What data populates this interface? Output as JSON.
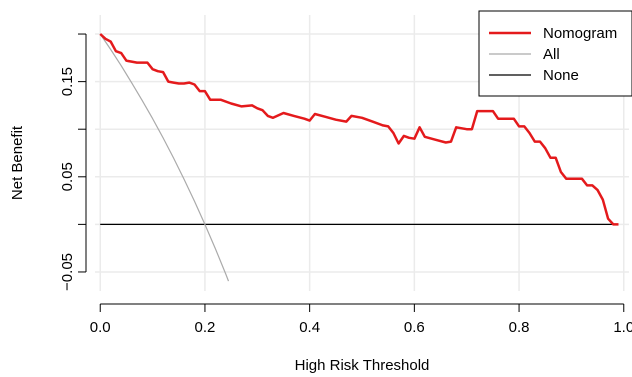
{
  "chart_data": {
    "type": "line",
    "title": "",
    "xlabel": "High Risk Threshold",
    "ylabel": "Net Benefit",
    "xlim": [
      -0.01,
      1.01
    ],
    "ylim": [
      -0.07,
      0.22
    ],
    "grid": true,
    "x_ticks": [
      0.0,
      0.2,
      0.4,
      0.6,
      0.8,
      1.0
    ],
    "x_tick_labels": [
      "0.0",
      "0.2",
      "0.4",
      "0.6",
      "0.8",
      "1.0"
    ],
    "y_ticks": [
      -0.05,
      0.05,
      0.15
    ],
    "y_tick_labels": [
      "−0.05",
      "0.05",
      "0.15"
    ],
    "y_grid": [
      -0.05,
      0.0,
      0.05,
      0.1,
      0.15,
      0.2
    ],
    "legend_position": "top-right",
    "series": [
      {
        "name": "Nomogram",
        "color": "#e41a1c",
        "x": [
          0.0,
          0.01,
          0.02,
          0.03,
          0.04,
          0.05,
          0.06,
          0.07,
          0.08,
          0.09,
          0.1,
          0.11,
          0.12,
          0.13,
          0.14,
          0.15,
          0.16,
          0.17,
          0.18,
          0.19,
          0.2,
          0.21,
          0.23,
          0.25,
          0.27,
          0.29,
          0.3,
          0.31,
          0.32,
          0.33,
          0.35,
          0.37,
          0.39,
          0.4,
          0.41,
          0.43,
          0.45,
          0.47,
          0.48,
          0.5,
          0.52,
          0.54,
          0.55,
          0.56,
          0.57,
          0.58,
          0.59,
          0.6,
          0.61,
          0.62,
          0.64,
          0.66,
          0.67,
          0.68,
          0.7,
          0.71,
          0.72,
          0.74,
          0.75,
          0.76,
          0.78,
          0.79,
          0.8,
          0.81,
          0.82,
          0.83,
          0.84,
          0.85,
          0.86,
          0.87,
          0.88,
          0.89,
          0.9,
          0.91,
          0.92,
          0.93,
          0.94,
          0.95,
          0.96,
          0.97,
          0.98,
          0.99
        ],
        "y": [
          0.2,
          0.195,
          0.192,
          0.182,
          0.18,
          0.172,
          0.171,
          0.17,
          0.17,
          0.17,
          0.163,
          0.161,
          0.16,
          0.15,
          0.149,
          0.148,
          0.148,
          0.149,
          0.147,
          0.14,
          0.14,
          0.131,
          0.131,
          0.127,
          0.124,
          0.125,
          0.122,
          0.12,
          0.114,
          0.112,
          0.117,
          0.114,
          0.111,
          0.109,
          0.116,
          0.113,
          0.11,
          0.108,
          0.114,
          0.112,
          0.108,
          0.104,
          0.103,
          0.096,
          0.085,
          0.093,
          0.091,
          0.09,
          0.102,
          0.092,
          0.089,
          0.086,
          0.087,
          0.102,
          0.1,
          0.1,
          0.119,
          0.119,
          0.119,
          0.111,
          0.111,
          0.111,
          0.103,
          0.103,
          0.096,
          0.087,
          0.087,
          0.08,
          0.07,
          0.07,
          0.055,
          0.048,
          0.048,
          0.048,
          0.048,
          0.041,
          0.041,
          0.036,
          0.026,
          0.006,
          0.0,
          0.0
        ]
      },
      {
        "name": "All",
        "color": "#aaaaaa",
        "x": [
          0.0,
          0.02,
          0.04,
          0.06,
          0.08,
          0.1,
          0.12,
          0.14,
          0.16,
          0.18,
          0.2,
          0.22,
          0.24,
          0.245
        ],
        "y": [
          0.2,
          0.1837,
          0.1667,
          0.1489,
          0.1304,
          0.1111,
          0.0909,
          0.0698,
          0.0476,
          0.0244,
          0.0,
          -0.0256,
          -0.0526,
          -0.0596
        ]
      },
      {
        "name": "None",
        "color": "#000000",
        "x": [
          0.0,
          0.99
        ],
        "y": [
          0.0,
          0.0
        ]
      }
    ]
  }
}
